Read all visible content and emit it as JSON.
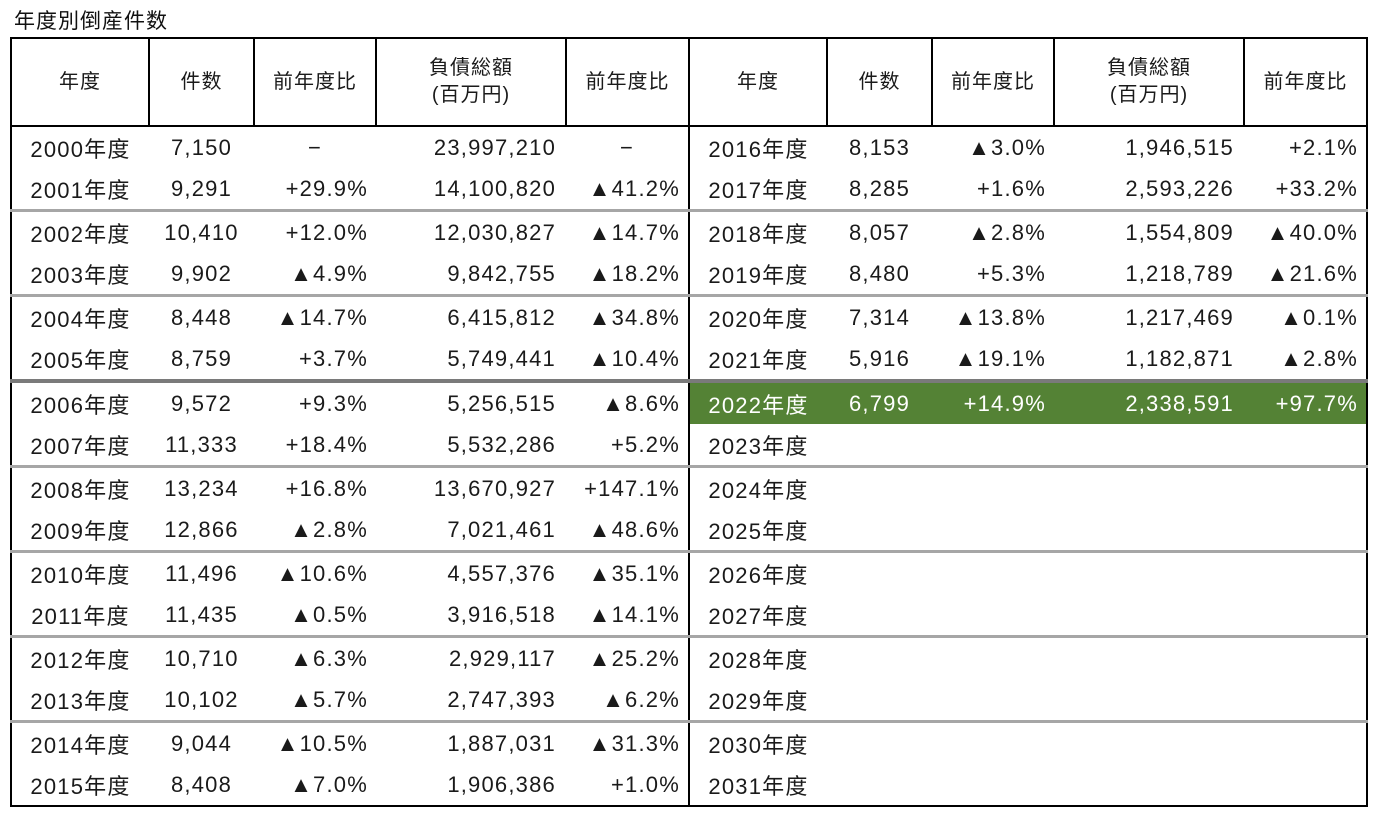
{
  "title": "年度別倒産件数",
  "header": {
    "year": "年度",
    "count": "件数",
    "count_yoy": "前年度比",
    "debt": "負債総額\n(百万円)",
    "debt_yoy": "前年度比"
  },
  "colors": {
    "highlight_bg": "#548235",
    "highlight_text": "#ffffff",
    "table_border": "#000000",
    "group_separator": "#a6a6a6"
  },
  "highlight_row_index": 6,
  "highlight_side": "right_rows",
  "left_rows": [
    {
      "year": "2000年度",
      "count": "7,150",
      "count_yoy": "−",
      "debt": "23,997,210",
      "debt_yoy": "−"
    },
    {
      "year": "2001年度",
      "count": "9,291",
      "count_yoy": "+29.9%",
      "debt": "14,100,820",
      "debt_yoy": "▲41.2%"
    },
    {
      "year": "2002年度",
      "count": "10,410",
      "count_yoy": "+12.0%",
      "debt": "12,030,827",
      "debt_yoy": "▲14.7%"
    },
    {
      "year": "2003年度",
      "count": "9,902",
      "count_yoy": "▲4.9%",
      "debt": "9,842,755",
      "debt_yoy": "▲18.2%"
    },
    {
      "year": "2004年度",
      "count": "8,448",
      "count_yoy": "▲14.7%",
      "debt": "6,415,812",
      "debt_yoy": "▲34.8%"
    },
    {
      "year": "2005年度",
      "count": "8,759",
      "count_yoy": "+3.7%",
      "debt": "5,749,441",
      "debt_yoy": "▲10.4%"
    },
    {
      "year": "2006年度",
      "count": "9,572",
      "count_yoy": "+9.3%",
      "debt": "5,256,515",
      "debt_yoy": "▲8.6%"
    },
    {
      "year": "2007年度",
      "count": "11,333",
      "count_yoy": "+18.4%",
      "debt": "5,532,286",
      "debt_yoy": "+5.2%"
    },
    {
      "year": "2008年度",
      "count": "13,234",
      "count_yoy": "+16.8%",
      "debt": "13,670,927",
      "debt_yoy": "+147.1%"
    },
    {
      "year": "2009年度",
      "count": "12,866",
      "count_yoy": "▲2.8%",
      "debt": "7,021,461",
      "debt_yoy": "▲48.6%"
    },
    {
      "year": "2010年度",
      "count": "11,496",
      "count_yoy": "▲10.6%",
      "debt": "4,557,376",
      "debt_yoy": "▲35.1%"
    },
    {
      "year": "2011年度",
      "count": "11,435",
      "count_yoy": "▲0.5%",
      "debt": "3,916,518",
      "debt_yoy": "▲14.1%"
    },
    {
      "year": "2012年度",
      "count": "10,710",
      "count_yoy": "▲6.3%",
      "debt": "2,929,117",
      "debt_yoy": "▲25.2%"
    },
    {
      "year": "2013年度",
      "count": "10,102",
      "count_yoy": "▲5.7%",
      "debt": "2,747,393",
      "debt_yoy": "▲6.2%"
    },
    {
      "year": "2014年度",
      "count": "9,044",
      "count_yoy": "▲10.5%",
      "debt": "1,887,031",
      "debt_yoy": "▲31.3%"
    },
    {
      "year": "2015年度",
      "count": "8,408",
      "count_yoy": "▲7.0%",
      "debt": "1,906,386",
      "debt_yoy": "+1.0%"
    }
  ],
  "right_rows": [
    {
      "year": "2016年度",
      "count": "8,153",
      "count_yoy": "▲3.0%",
      "debt": "1,946,515",
      "debt_yoy": "+2.1%"
    },
    {
      "year": "2017年度",
      "count": "8,285",
      "count_yoy": "+1.6%",
      "debt": "2,593,226",
      "debt_yoy": "+33.2%"
    },
    {
      "year": "2018年度",
      "count": "8,057",
      "count_yoy": "▲2.8%",
      "debt": "1,554,809",
      "debt_yoy": "▲40.0%"
    },
    {
      "year": "2019年度",
      "count": "8,480",
      "count_yoy": "+5.3%",
      "debt": "1,218,789",
      "debt_yoy": "▲21.6%"
    },
    {
      "year": "2020年度",
      "count": "7,314",
      "count_yoy": "▲13.8%",
      "debt": "1,217,469",
      "debt_yoy": "▲0.1%"
    },
    {
      "year": "2021年度",
      "count": "5,916",
      "count_yoy": "▲19.1%",
      "debt": "1,182,871",
      "debt_yoy": "▲2.8%"
    },
    {
      "year": "2022年度",
      "count": "6,799",
      "count_yoy": "+14.9%",
      "debt": "2,338,591",
      "debt_yoy": "+97.7%"
    },
    {
      "year": "2023年度",
      "count": "",
      "count_yoy": "",
      "debt": "",
      "debt_yoy": ""
    },
    {
      "year": "2024年度",
      "count": "",
      "count_yoy": "",
      "debt": "",
      "debt_yoy": ""
    },
    {
      "year": "2025年度",
      "count": "",
      "count_yoy": "",
      "debt": "",
      "debt_yoy": ""
    },
    {
      "year": "2026年度",
      "count": "",
      "count_yoy": "",
      "debt": "",
      "debt_yoy": ""
    },
    {
      "year": "2027年度",
      "count": "",
      "count_yoy": "",
      "debt": "",
      "debt_yoy": ""
    },
    {
      "year": "2028年度",
      "count": "",
      "count_yoy": "",
      "debt": "",
      "debt_yoy": ""
    },
    {
      "year": "2029年度",
      "count": "",
      "count_yoy": "",
      "debt": "",
      "debt_yoy": ""
    },
    {
      "year": "2030年度",
      "count": "",
      "count_yoy": "",
      "debt": "",
      "debt_yoy": ""
    },
    {
      "year": "2031年度",
      "count": "",
      "count_yoy": "",
      "debt": "",
      "debt_yoy": ""
    }
  ]
}
